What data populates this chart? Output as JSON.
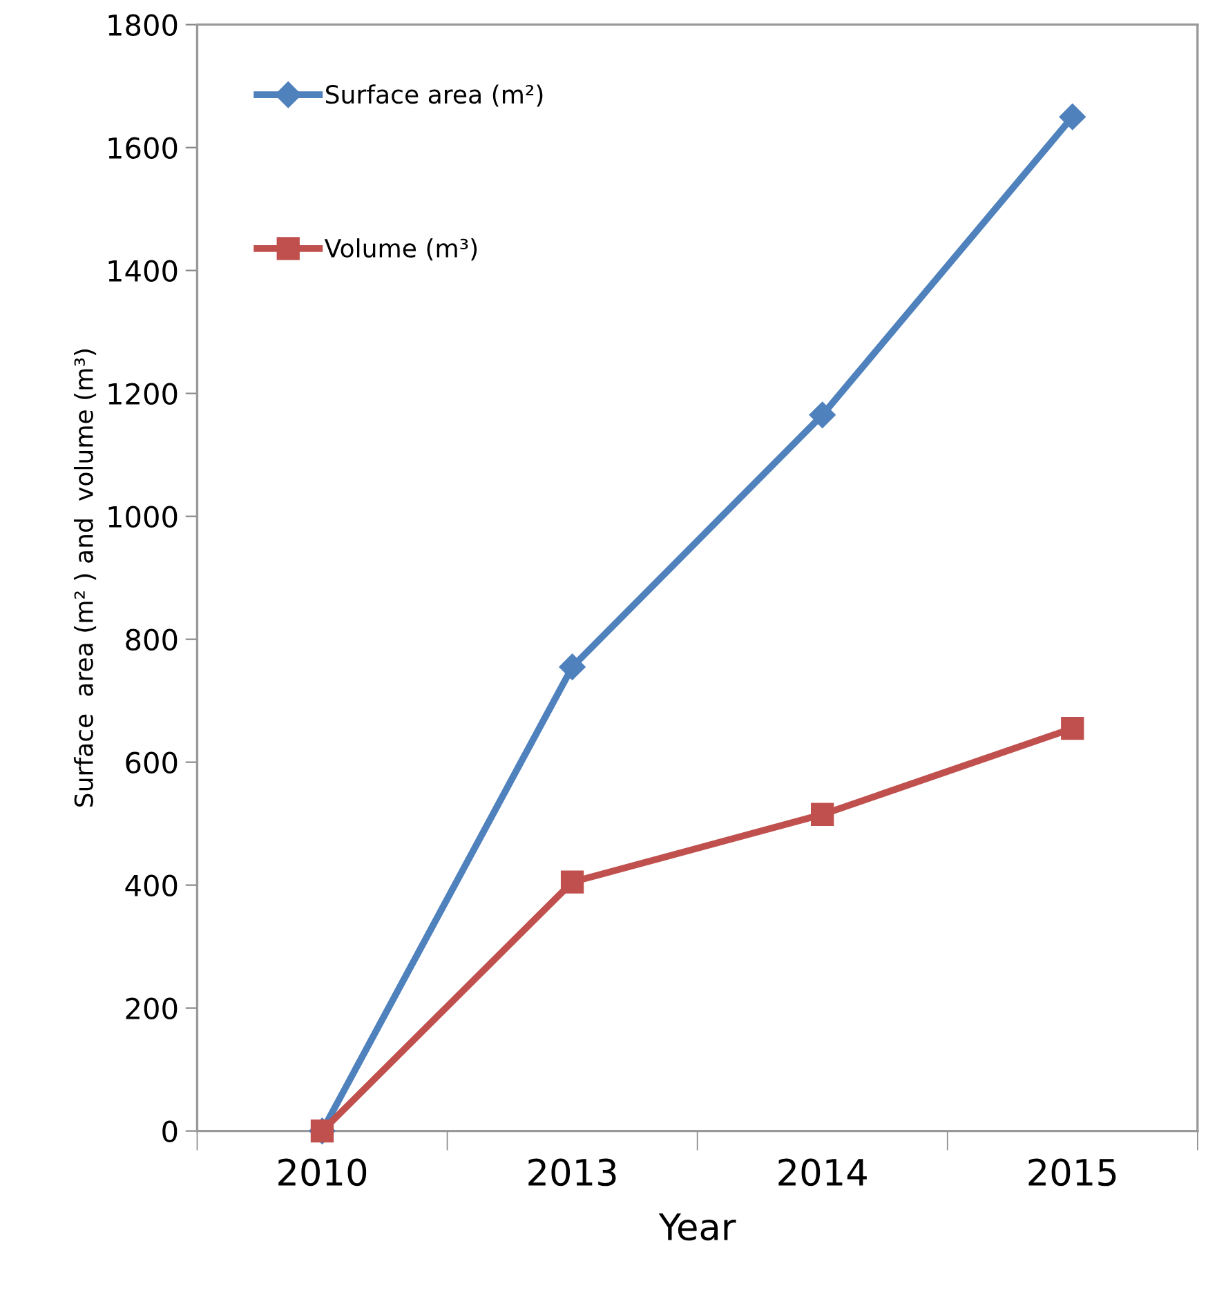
{
  "chart_data": {
    "type": "line",
    "xlabel": "Year",
    "ylabel": "Surface  area (m² ) and  volume (m³)",
    "categories": [
      "2010",
      "2013",
      "2014",
      "2015"
    ],
    "series": [
      {
        "name": "Surface area (m²)",
        "color": "#4f81bd",
        "marker": "diamond",
        "values": [
          0,
          755,
          1165,
          1650
        ]
      },
      {
        "name": "Volume (m³)",
        "color": "#c0504d",
        "marker": "square",
        "values": [
          0,
          405,
          515,
          655
        ]
      }
    ],
    "ylim": [
      0,
      1800
    ],
    "yticks": [
      0,
      200,
      400,
      600,
      800,
      1000,
      1200,
      1400,
      1600,
      1800
    ],
    "grid": false,
    "legend": "top left",
    "line_style": "solid"
  }
}
